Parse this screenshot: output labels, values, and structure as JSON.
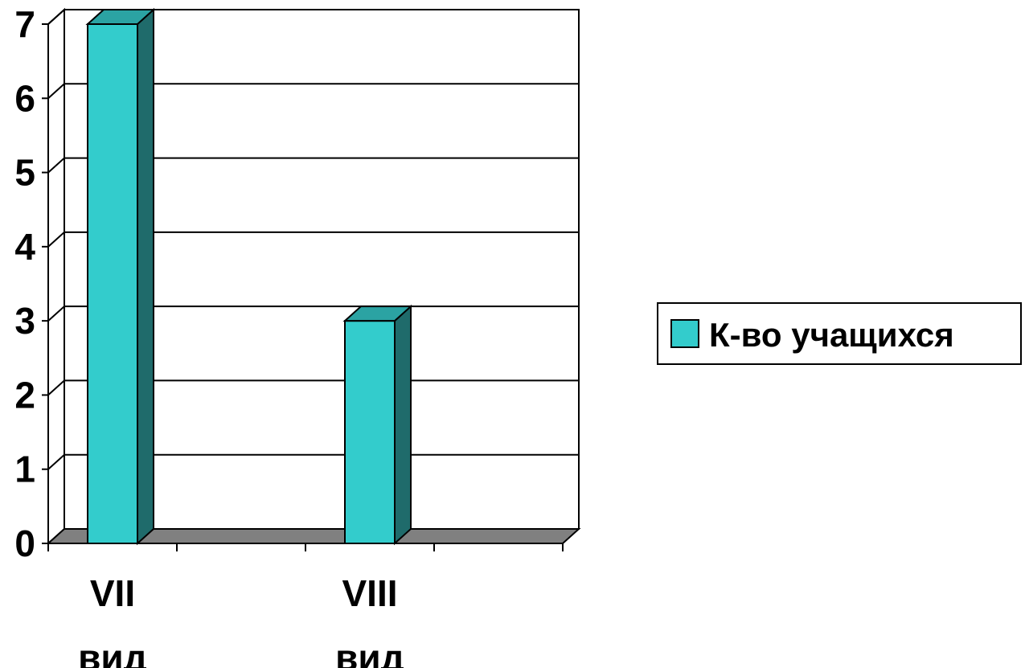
{
  "chart_data": {
    "type": "bar",
    "categories": [
      [
        "VII",
        "вид"
      ],
      [
        "VIII",
        "вид"
      ]
    ],
    "series": [
      {
        "name": "К-во учащихся",
        "values": [
          7,
          3
        ],
        "color": "#33CCCC",
        "side_color": "#1F6B6B",
        "top_color": "#2BA3A3"
      }
    ],
    "yticks": [
      "0",
      "1",
      "2",
      "3",
      "4",
      "5",
      "6",
      "7"
    ],
    "ylim": [
      0,
      7
    ],
    "grid": true,
    "legend": "right",
    "floor_color": "#808080"
  }
}
